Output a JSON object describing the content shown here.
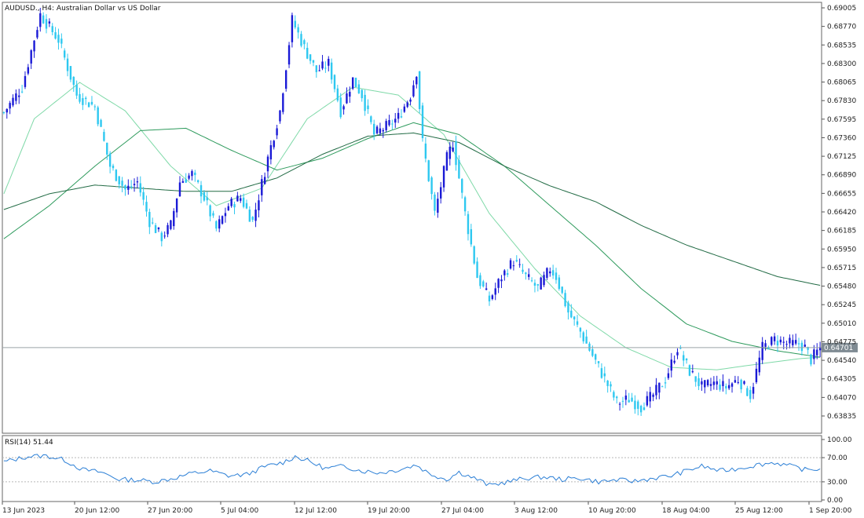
{
  "header": {
    "symbol": "AUDUSD.",
    "timeframe": "H4",
    "description": "Australian Dollar vs US Dollar"
  },
  "current_price_label": "0.64701",
  "rsi_panel": {
    "label": "RSI(14) 51.44"
  },
  "colors": {
    "bull_candle": "#1a1ad6",
    "bear_candle": "#2ec8f0",
    "ma_fast": "#7fd9a8",
    "ma_mid": "#2d9a5c",
    "ma_slow": "#226b45",
    "rsi_line": "#2b7fd6",
    "price_line": "#9aa3a8",
    "label_bg": "#7f8b93"
  },
  "chart_data": [
    {
      "type": "candlestick",
      "title": "AUDUSD., H4:  Australian Dollar vs US Dollar",
      "y_ticks": [
        "0.69005",
        "0.68770",
        "0.68535",
        "0.68300",
        "0.68065",
        "0.67830",
        "0.67595",
        "0.67360",
        "0.67125",
        "0.66890",
        "0.66655",
        "0.66420",
        "0.66185",
        "0.65950",
        "0.65715",
        "0.65480",
        "0.65245",
        "0.65010",
        "0.64775",
        "0.64540",
        "0.64305",
        "0.64070",
        "0.63835"
      ],
      "ylim": [
        0.6365,
        0.691
      ],
      "x_ticks": [
        "13 Jun 2023",
        "20 Jun 12:00",
        "27 Jun 20:00",
        "5 Jul 04:00",
        "12 Jul 12:00",
        "19 Jul 20:00",
        "27 Jul 04:00",
        "3 Aug 12:00",
        "10 Aug 20:00",
        "18 Aug 04:00",
        "25 Aug 12:00",
        "1 Sep 20:00"
      ],
      "last_price": 0.64701,
      "path_points": [
        [
          0,
          0.6768
        ],
        [
          6,
          0.68
        ],
        [
          12,
          0.6892
        ],
        [
          18,
          0.686
        ],
        [
          24,
          0.679
        ],
        [
          30,
          0.6775
        ],
        [
          35,
          0.67
        ],
        [
          40,
          0.667
        ],
        [
          44,
          0.668
        ],
        [
          48,
          0.663
        ],
        [
          52,
          0.661
        ],
        [
          55,
          0.6625
        ],
        [
          58,
          0.668
        ],
        [
          62,
          0.669
        ],
        [
          66,
          0.666
        ],
        [
          70,
          0.662
        ],
        [
          74,
          0.665
        ],
        [
          78,
          0.666
        ],
        [
          82,
          0.663
        ],
        [
          87,
          0.671
        ],
        [
          91,
          0.677
        ],
        [
          95,
          0.6885
        ],
        [
          99,
          0.685
        ],
        [
          103,
          0.682
        ],
        [
          107,
          0.683
        ],
        [
          111,
          0.677
        ],
        [
          115,
          0.681
        ],
        [
          118,
          0.679
        ],
        [
          122,
          0.674
        ],
        [
          126,
          0.675
        ],
        [
          130,
          0.6762
        ],
        [
          134,
          0.679
        ],
        [
          136,
          0.682
        ],
        [
          138,
          0.673
        ],
        [
          142,
          0.664
        ],
        [
          146,
          0.671
        ],
        [
          148,
          0.673
        ],
        [
          152,
          0.664
        ],
        [
          156,
          0.656
        ],
        [
          160,
          0.653
        ],
        [
          164,
          0.656
        ],
        [
          168,
          0.658
        ],
        [
          172,
          0.656
        ],
        [
          176,
          0.6545
        ],
        [
          180,
          0.657
        ],
        [
          182,
          0.656
        ],
        [
          186,
          0.6515
        ],
        [
          190,
          0.649
        ],
        [
          194,
          0.646
        ],
        [
          198,
          0.643
        ],
        [
          202,
          0.64
        ],
        [
          206,
          0.6405
        ],
        [
          210,
          0.6395
        ],
        [
          214,
          0.641
        ],
        [
          218,
          0.643
        ],
        [
          222,
          0.647
        ],
        [
          226,
          0.644
        ],
        [
          230,
          0.642
        ],
        [
          234,
          0.6425
        ],
        [
          238,
          0.642
        ],
        [
          242,
          0.643
        ],
        [
          246,
          0.641
        ],
        [
          250,
          0.647
        ],
        [
          254,
          0.648
        ],
        [
          258,
          0.6475
        ],
        [
          262,
          0.6475
        ],
        [
          264,
          0.647
        ],
        [
          266,
          0.6455
        ],
        [
          269,
          0.647
        ]
      ],
      "moving_averages": [
        {
          "name": "MA fast",
          "color_key": "ma_fast",
          "points": [
            [
              0,
              0.6665
            ],
            [
              10,
              0.676
            ],
            [
              25,
              0.6806
            ],
            [
              40,
              0.677
            ],
            [
              55,
              0.67
            ],
            [
              70,
              0.665
            ],
            [
              85,
              0.6672
            ],
            [
              100,
              0.676
            ],
            [
              115,
              0.68
            ],
            [
              130,
              0.679
            ],
            [
              145,
              0.674
            ],
            [
              160,
              0.664
            ],
            [
              175,
              0.657
            ],
            [
              190,
              0.651
            ],
            [
              205,
              0.647
            ],
            [
              220,
              0.6445
            ],
            [
              235,
              0.6442
            ],
            [
              250,
              0.645
            ],
            [
              262,
              0.6456
            ],
            [
              269,
              0.6458
            ]
          ]
        },
        {
          "name": "MA mid",
          "color_key": "ma_mid",
          "points": [
            [
              0,
              0.6608
            ],
            [
              15,
              0.665
            ],
            [
              30,
              0.67
            ],
            [
              45,
              0.6745
            ],
            [
              60,
              0.6748
            ],
            [
              75,
              0.672
            ],
            [
              90,
              0.6695
            ],
            [
              105,
              0.671
            ],
            [
              120,
              0.6735
            ],
            [
              135,
              0.6755
            ],
            [
              150,
              0.674
            ],
            [
              165,
              0.67
            ],
            [
              180,
              0.665
            ],
            [
              195,
              0.66
            ],
            [
              210,
              0.6545
            ],
            [
              225,
              0.65
            ],
            [
              240,
              0.6478
            ],
            [
              255,
              0.6466
            ],
            [
              269,
              0.6458
            ]
          ]
        },
        {
          "name": "MA slow",
          "color_key": "ma_slow",
          "points": [
            [
              0,
              0.6645
            ],
            [
              15,
              0.6665
            ],
            [
              30,
              0.6676
            ],
            [
              45,
              0.6672
            ],
            [
              60,
              0.6668
            ],
            [
              75,
              0.6668
            ],
            [
              90,
              0.6685
            ],
            [
              105,
              0.6715
            ],
            [
              120,
              0.6738
            ],
            [
              135,
              0.6742
            ],
            [
              150,
              0.673
            ],
            [
              165,
              0.67
            ],
            [
              180,
              0.6675
            ],
            [
              195,
              0.6655
            ],
            [
              210,
              0.6625
            ],
            [
              225,
              0.66
            ],
            [
              240,
              0.658
            ],
            [
              255,
              0.656
            ],
            [
              269,
              0.6549
            ]
          ]
        }
      ]
    },
    {
      "type": "line",
      "title": "RSI(14) 51.44",
      "y_ticks": [
        "100.00",
        "70.00",
        "30.00",
        "0.00"
      ],
      "levels": [
        70,
        30
      ],
      "ylim": [
        0,
        100
      ],
      "last_value": 51.44,
      "path_points": [
        [
          0,
          63
        ],
        [
          8,
          72
        ],
        [
          14,
          73
        ],
        [
          20,
          66
        ],
        [
          26,
          50
        ],
        [
          32,
          46
        ],
        [
          38,
          34
        ],
        [
          44,
          33
        ],
        [
          50,
          30
        ],
        [
          56,
          36
        ],
        [
          62,
          44
        ],
        [
          68,
          48
        ],
        [
          74,
          40
        ],
        [
          80,
          42
        ],
        [
          86,
          55
        ],
        [
          92,
          62
        ],
        [
          96,
          72
        ],
        [
          100,
          65
        ],
        [
          106,
          52
        ],
        [
          112,
          56
        ],
        [
          118,
          48
        ],
        [
          124,
          45
        ],
        [
          130,
          50
        ],
        [
          136,
          58
        ],
        [
          140,
          44
        ],
        [
          146,
          34
        ],
        [
          150,
          46
        ],
        [
          156,
          34
        ],
        [
          160,
          24
        ],
        [
          166,
          30
        ],
        [
          172,
          36
        ],
        [
          178,
          38
        ],
        [
          184,
          34
        ],
        [
          190,
          36
        ],
        [
          196,
          30
        ],
        [
          202,
          33
        ],
        [
          208,
          31
        ],
        [
          214,
          36
        ],
        [
          220,
          40
        ],
        [
          226,
          50
        ],
        [
          230,
          56
        ],
        [
          236,
          48
        ],
        [
          242,
          52
        ],
        [
          248,
          58
        ],
        [
          254,
          62
        ],
        [
          260,
          55
        ],
        [
          264,
          50
        ],
        [
          269,
          51.44
        ]
      ]
    }
  ]
}
